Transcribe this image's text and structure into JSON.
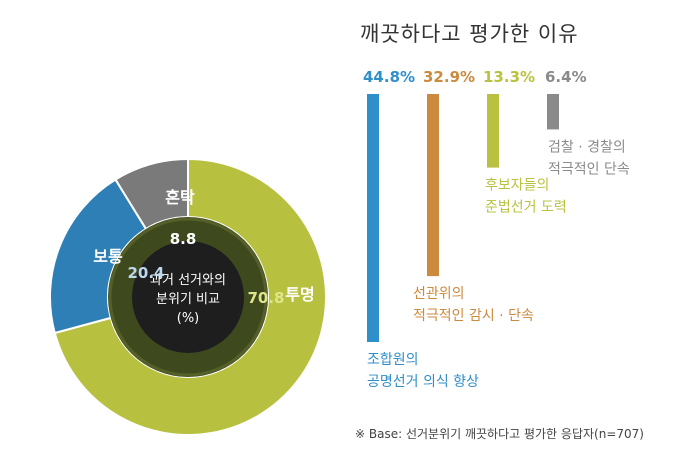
{
  "colors": {
    "teal": "#2f8fc9",
    "orange": "#cc8a3e",
    "lime": "#b9c240",
    "gray": "#8a8a8a",
    "donut_transparent": "#b8c040",
    "donut_normal": "#2d7fb5",
    "donut_chaos": "#7a7a7a",
    "ring_dark": "#3e4a1e",
    "ring_mid": "#555f28",
    "center": "#1e1e1e"
  },
  "chart_data": [
    {
      "type": "pie",
      "title": "과거 선거와의 분위기 비교 (%)",
      "title_lines": [
        "과거 선거와의",
        "분위기 비교",
        "(%)"
      ],
      "slices": [
        {
          "name": "투명",
          "value": 70.8,
          "value_label": "70.8"
        },
        {
          "name": "보통",
          "value": 20.4,
          "value_label": "20.4"
        },
        {
          "name": "혼탁",
          "value": 8.8,
          "value_label": "8.8"
        }
      ]
    },
    {
      "type": "bar",
      "title": "깨끗하다고 평가한 이유",
      "ylim": [
        0,
        44.8
      ],
      "bars": [
        {
          "value": 44.8,
          "value_label": "44.8%",
          "label_lines": [
            "조합원의",
            "공명선거 의식 향상"
          ]
        },
        {
          "value": 32.9,
          "value_label": "32.9%",
          "label_lines": [
            "선관위의",
            "적극적인 감시 · 단속"
          ]
        },
        {
          "value": 13.3,
          "value_label": "13.3%",
          "label_lines": [
            "후보자들의",
            "준법선거 도력"
          ]
        },
        {
          "value": 6.4,
          "value_label": "6.4%",
          "label_lines": [
            "검찰 · 경찰의",
            "적극적인 단속"
          ]
        }
      ]
    }
  ],
  "footnote": "※ Base: 선거분위기 깨끗하다고 평가한 응답자(n=707)"
}
